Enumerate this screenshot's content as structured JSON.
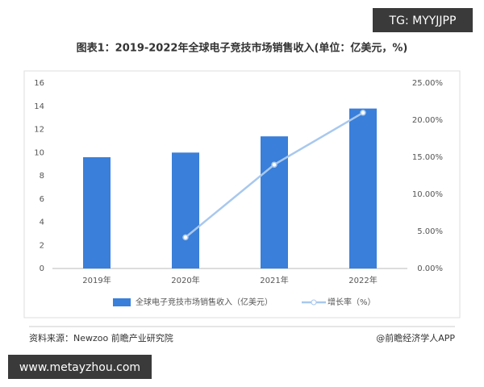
{
  "overlay": {
    "top_badge": "TG: MYYJJPP",
    "bottom_badge": "www.metayzhou.com"
  },
  "chart_data": {
    "type": "bar",
    "title": "图表1：2019-2022年全球电子竞技市场销售收入(单位：亿美元，%)",
    "categories": [
      "2019年",
      "2020年",
      "2021年",
      "2022年"
    ],
    "series": [
      {
        "name": "全球电子竞技市场销售收入（亿美元）",
        "type": "bar",
        "color": "#3a7fd9",
        "values": [
          9.6,
          10.0,
          11.4,
          13.8
        ]
      },
      {
        "name": "增长率（%）",
        "type": "line",
        "axis": "y2",
        "color": "#a8c8ee",
        "values": [
          null,
          4.2,
          14.0,
          21.0
        ]
      }
    ],
    "ylim": [
      0,
      16
    ],
    "yticks": [
      0,
      2,
      4,
      6,
      8,
      10,
      12,
      14,
      16
    ],
    "y2lim": [
      0,
      25
    ],
    "y2ticks": [
      {
        "value": 0,
        "label": "0.00%"
      },
      {
        "value": 5,
        "label": "5.00%"
      },
      {
        "value": 10,
        "label": "10.00%"
      },
      {
        "value": 15,
        "label": "15.00%"
      },
      {
        "value": 20,
        "label": "20.00%"
      },
      {
        "value": 25,
        "label": "25.00%"
      }
    ],
    "grid": false,
    "legend": "bottom"
  },
  "footer": {
    "source": "资料来源：Newzoo 前瞻产业研究院",
    "credit": "@前瞻经济学人APP"
  }
}
